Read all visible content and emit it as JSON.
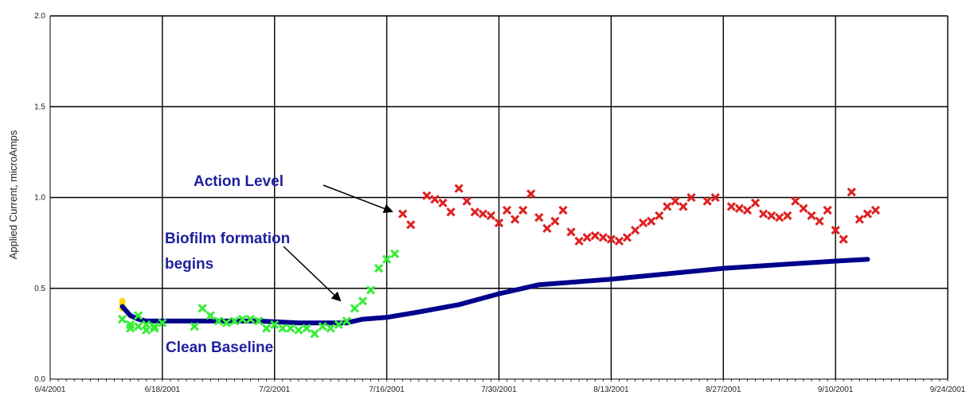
{
  "chart_data": {
    "type": "scatter",
    "title": "",
    "xlabel": "",
    "ylabel": "Applied Current, microAmps",
    "xlim": [
      "2001-06-04",
      "2001-09-24"
    ],
    "ylim": [
      0.0,
      2.0
    ],
    "y_ticks": [
      "0.0",
      "0.5",
      "1.0",
      "1.5",
      "2.0"
    ],
    "x_ticks": [
      "6/4/2001",
      "6/18/2001",
      "7/2/2001",
      "7/16/2001",
      "7/30/2001",
      "8/13/2001",
      "8/27/2001",
      "9/10/2001",
      "9/24/2001"
    ],
    "grid": true,
    "annotations": [
      {
        "text_lines": [
          "Action Level"
        ],
        "points_to": [
          "2001-07-15",
          0.9
        ]
      },
      {
        "text_lines": [
          "Biofilm formation",
          "begins"
        ],
        "points_to": [
          "2001-07-11",
          0.4
        ]
      },
      {
        "text_lines": [
          "Clean Baseline"
        ]
      }
    ],
    "series": [
      {
        "color": "#ffd700",
        "marker": "circle",
        "points": [
          [
            "2001-06-13",
            0.43
          ],
          [
            "2001-06-13",
            0.41
          ],
          [
            "2001-06-13",
            0.39
          ]
        ]
      },
      {
        "color": "#00008b",
        "marker": "line",
        "points": [
          [
            "2001-06-13",
            0.4
          ],
          [
            "2001-06-14",
            0.35
          ],
          [
            "2001-06-15",
            0.33
          ],
          [
            "2001-06-16",
            0.32
          ],
          [
            "2001-06-20",
            0.32
          ],
          [
            "2001-06-30",
            0.32
          ],
          [
            "2001-07-05",
            0.31
          ],
          [
            "2001-07-11",
            0.31
          ],
          [
            "2001-07-13",
            0.33
          ],
          [
            "2001-07-16",
            0.34
          ],
          [
            "2001-07-20",
            0.37
          ],
          [
            "2001-07-25",
            0.41
          ],
          [
            "2001-07-30",
            0.47
          ],
          [
            "2001-08-04",
            0.52
          ],
          [
            "2001-08-13",
            0.55
          ],
          [
            "2001-08-20",
            0.58
          ],
          [
            "2001-08-27",
            0.61
          ],
          [
            "2001-09-03",
            0.63
          ],
          [
            "2001-09-10",
            0.65
          ],
          [
            "2001-09-14",
            0.66
          ]
        ]
      },
      {
        "color": "#33ee33",
        "marker": "x",
        "points": [
          [
            "2001-06-13",
            0.33
          ],
          [
            "2001-06-14",
            0.3
          ],
          [
            "2001-06-14",
            0.28
          ],
          [
            "2001-06-15",
            0.35
          ],
          [
            "2001-06-15",
            0.29
          ],
          [
            "2001-06-16",
            0.3
          ],
          [
            "2001-06-16",
            0.27
          ],
          [
            "2001-06-17",
            0.28
          ],
          [
            "2001-06-17",
            0.29
          ],
          [
            "2001-06-18",
            0.31
          ],
          [
            "2001-06-22",
            0.29
          ],
          [
            "2001-06-23",
            0.39
          ],
          [
            "2001-06-24",
            0.35
          ],
          [
            "2001-06-25",
            0.32
          ],
          [
            "2001-06-26",
            0.31
          ],
          [
            "2001-06-27",
            0.32
          ],
          [
            "2001-06-28",
            0.33
          ],
          [
            "2001-06-29",
            0.33
          ],
          [
            "2001-06-30",
            0.32
          ],
          [
            "2001-07-01",
            0.28
          ],
          [
            "2001-07-02",
            0.3
          ],
          [
            "2001-07-03",
            0.28
          ],
          [
            "2001-07-04",
            0.28
          ],
          [
            "2001-07-05",
            0.27
          ],
          [
            "2001-07-06",
            0.28
          ],
          [
            "2001-07-07",
            0.25
          ],
          [
            "2001-07-08",
            0.29
          ],
          [
            "2001-07-09",
            0.28
          ],
          [
            "2001-07-10",
            0.3
          ],
          [
            "2001-07-11",
            0.32
          ],
          [
            "2001-07-12",
            0.39
          ],
          [
            "2001-07-13",
            0.43
          ],
          [
            "2001-07-14",
            0.49
          ],
          [
            "2001-07-15",
            0.61
          ],
          [
            "2001-07-16",
            0.66
          ],
          [
            "2001-07-17",
            0.69
          ]
        ]
      },
      {
        "color": "#e02020",
        "marker": "x",
        "points": [
          [
            "2001-07-18",
            0.91
          ],
          [
            "2001-07-19",
            0.85
          ],
          [
            "2001-07-21",
            1.01
          ],
          [
            "2001-07-22",
            0.99
          ],
          [
            "2001-07-23",
            0.97
          ],
          [
            "2001-07-24",
            0.92
          ],
          [
            "2001-07-25",
            1.05
          ],
          [
            "2001-07-26",
            0.98
          ],
          [
            "2001-07-27",
            0.92
          ],
          [
            "2001-07-28",
            0.91
          ],
          [
            "2001-07-29",
            0.9
          ],
          [
            "2001-07-30",
            0.86
          ],
          [
            "2001-07-31",
            0.93
          ],
          [
            "2001-08-01",
            0.88
          ],
          [
            "2001-08-02",
            0.93
          ],
          [
            "2001-08-03",
            1.02
          ],
          [
            "2001-08-04",
            0.89
          ],
          [
            "2001-08-05",
            0.83
          ],
          [
            "2001-08-06",
            0.87
          ],
          [
            "2001-08-07",
            0.93
          ],
          [
            "2001-08-08",
            0.81
          ],
          [
            "2001-08-09",
            0.76
          ],
          [
            "2001-08-10",
            0.78
          ],
          [
            "2001-08-11",
            0.79
          ],
          [
            "2001-08-12",
            0.78
          ],
          [
            "2001-08-13",
            0.77
          ],
          [
            "2001-08-14",
            0.76
          ],
          [
            "2001-08-15",
            0.78
          ],
          [
            "2001-08-16",
            0.82
          ],
          [
            "2001-08-17",
            0.86
          ],
          [
            "2001-08-18",
            0.87
          ],
          [
            "2001-08-19",
            0.9
          ],
          [
            "2001-08-20",
            0.95
          ],
          [
            "2001-08-21",
            0.98
          ],
          [
            "2001-08-22",
            0.95
          ],
          [
            "2001-08-23",
            1.0
          ],
          [
            "2001-08-25",
            0.98
          ],
          [
            "2001-08-26",
            1.0
          ],
          [
            "2001-08-28",
            0.95
          ],
          [
            "2001-08-29",
            0.94
          ],
          [
            "2001-08-30",
            0.93
          ],
          [
            "2001-08-31",
            0.97
          ],
          [
            "2001-09-01",
            0.91
          ],
          [
            "2001-09-02",
            0.9
          ],
          [
            "2001-09-03",
            0.89
          ],
          [
            "2001-09-04",
            0.9
          ],
          [
            "2001-09-05",
            0.98
          ],
          [
            "2001-09-06",
            0.94
          ],
          [
            "2001-09-07",
            0.9
          ],
          [
            "2001-09-08",
            0.87
          ],
          [
            "2001-09-09",
            0.93
          ],
          [
            "2001-09-10",
            0.82
          ],
          [
            "2001-09-11",
            0.77
          ],
          [
            "2001-09-12",
            1.03
          ],
          [
            "2001-09-13",
            0.88
          ],
          [
            "2001-09-14",
            0.91
          ],
          [
            "2001-09-15",
            0.93
          ]
        ]
      }
    ]
  }
}
